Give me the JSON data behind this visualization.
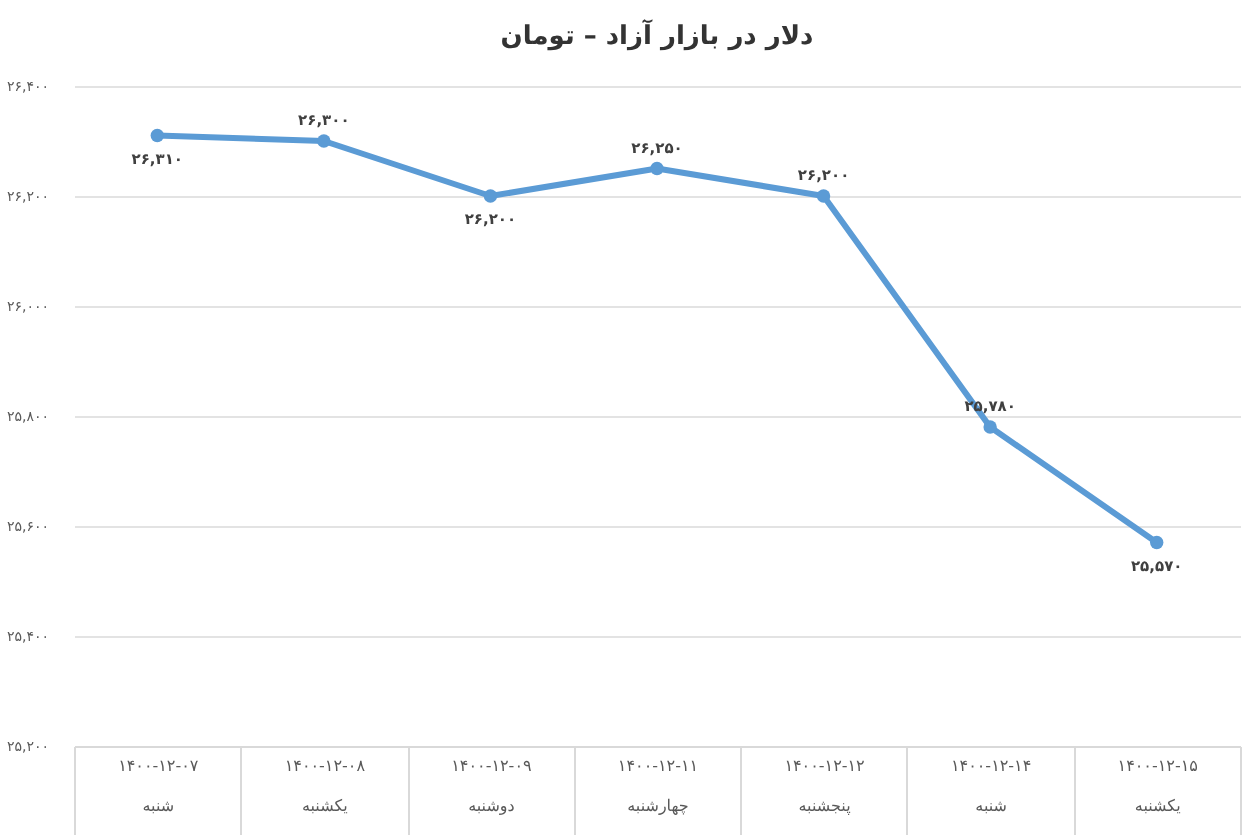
{
  "chart_data": {
    "type": "line",
    "title": "دلار در بازار آزاد – تومان",
    "categories": [
      "۱۴۰۰-۱۲-۰۷\nشنبه",
      "۱۴۰۰-۱۲-۰۸\nیکشنبه",
      "۱۴۰۰-۱۲-۰۹\nدوشنبه",
      "۱۴۰۰-۱۲-۱۱\nچهارشنبه",
      "۱۴۰۰-۱۲-۱۲\nپنجشنبه",
      "۱۴۰۰-۱۲-۱۴\nشنبه",
      "۱۴۰۰-۱۲-۱۵\nیکشنبه"
    ],
    "values": [
      26310,
      26300,
      26200,
      26250,
      26200,
      25780,
      25570
    ],
    "value_labels": [
      "۲۶,۳۱۰",
      "۲۶,۳۰۰",
      "۲۶,۲۰۰",
      "۲۶,۲۵۰",
      "۲۶,۲۰۰",
      "۲۵,۷۸۰",
      "۲۵,۵۷۰"
    ],
    "color": "#5b9bd5",
    "ylim": [
      25200,
      26400
    ],
    "yticks": [
      {
        "value": 26400,
        "label": "۲۶,۴۰۰"
      },
      {
        "value": 26200,
        "label": "۲۶,۲۰۰"
      },
      {
        "value": 26000,
        "label": "۲۶,۰۰۰"
      },
      {
        "value": 25800,
        "label": "۲۵,۸۰۰"
      },
      {
        "value": 25600,
        "label": "۲۵,۶۰۰"
      },
      {
        "value": 25400,
        "label": "۲۵,۴۰۰"
      },
      {
        "value": 25200,
        "label": "۲۵,۲۰۰"
      }
    ],
    "grid": "y",
    "marker": "circle",
    "line_style": "solid"
  }
}
